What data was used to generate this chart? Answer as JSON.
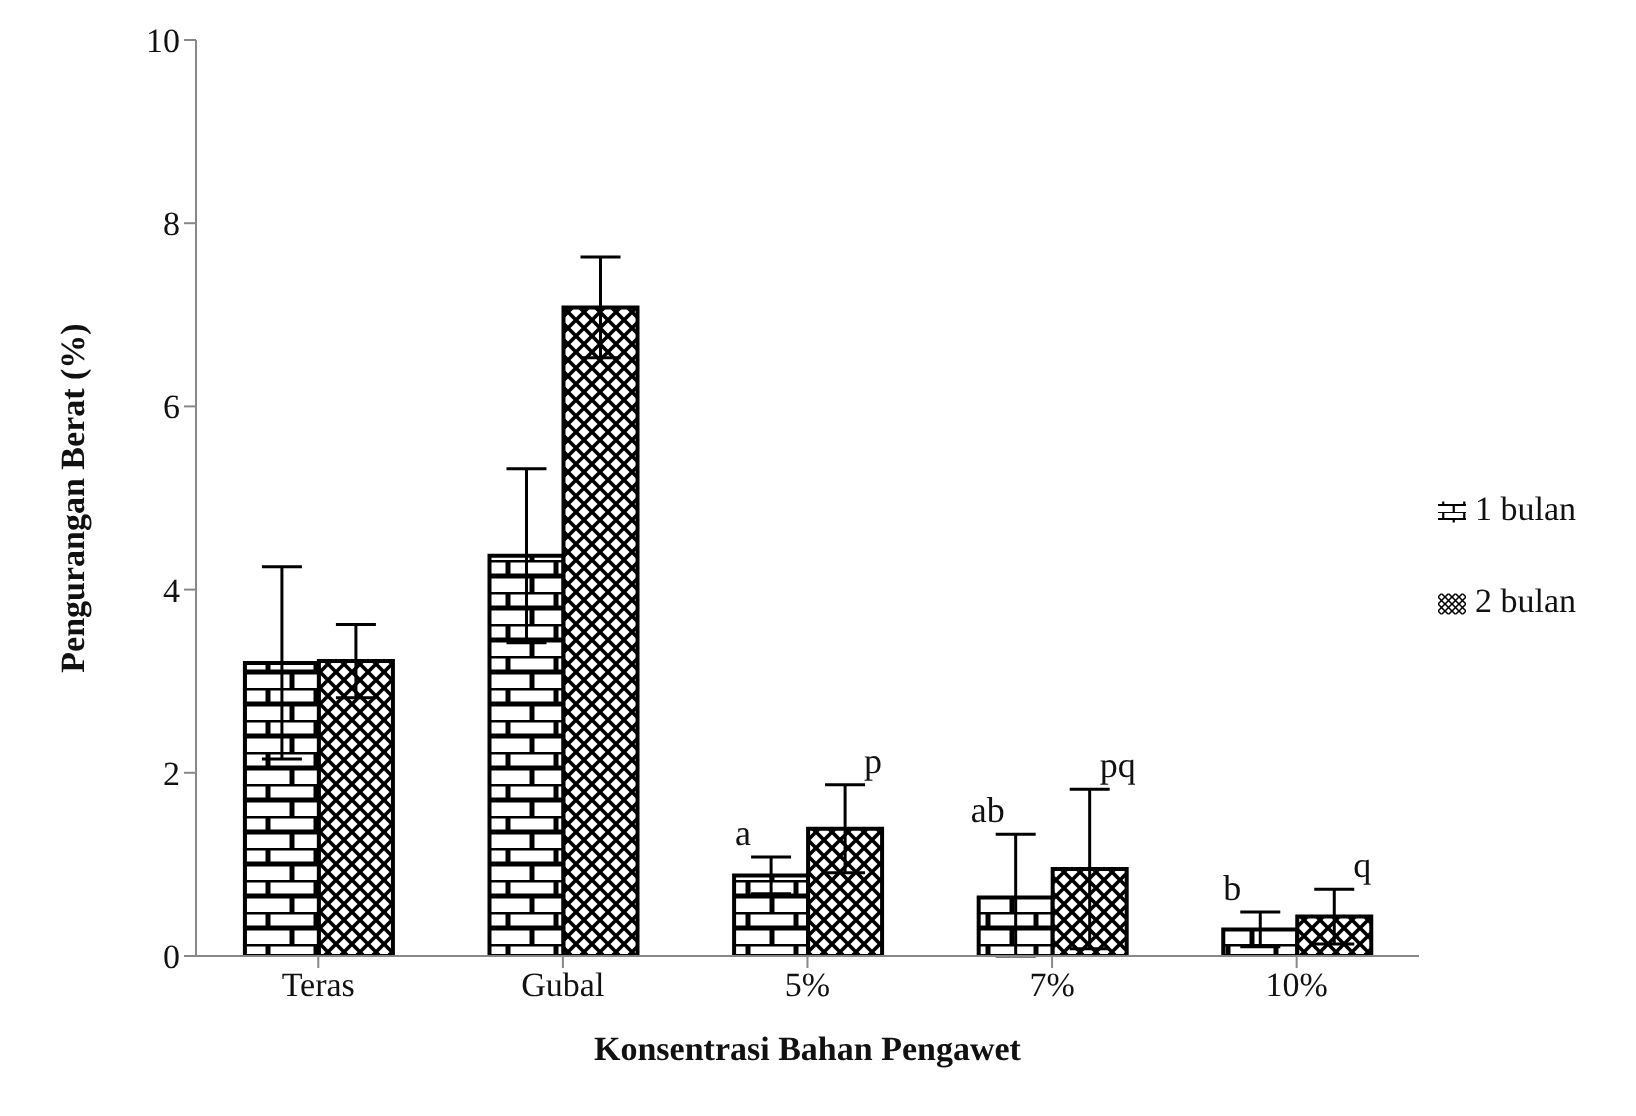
{
  "chart_data": {
    "type": "bar",
    "xlabel": "Konsentrasi Bahan Pengawet",
    "ylabel": "Pengurangan Berat (%)",
    "categories": [
      "Teras",
      "Gubal",
      "5%",
      "7%",
      "10%"
    ],
    "series": [
      {
        "name": "1 bulan",
        "color": "#000000",
        "values": [
          3.2,
          4.37,
          0.88,
          0.64,
          0.29
        ],
        "errors": [
          1.05,
          0.95,
          0.2,
          [
            0,
            1.33
          ],
          0.19
        ],
        "value_labels": [
          null,
          null,
          "a",
          "ab",
          "b"
        ]
      },
      {
        "name": "2 bulan",
        "color": "#000000",
        "values": [
          3.22,
          7.08,
          1.39,
          0.95,
          0.43
        ],
        "errors": [
          0.4,
          0.55,
          0.48,
          0.87,
          0.3
        ],
        "value_labels": [
          null,
          null,
          "p",
          "pq",
          "q"
        ]
      }
    ],
    "ylim": [
      0,
      10
    ],
    "yticks": [
      0,
      2,
      4,
      6,
      8,
      10
    ],
    "grid": false,
    "legend": "right"
  }
}
